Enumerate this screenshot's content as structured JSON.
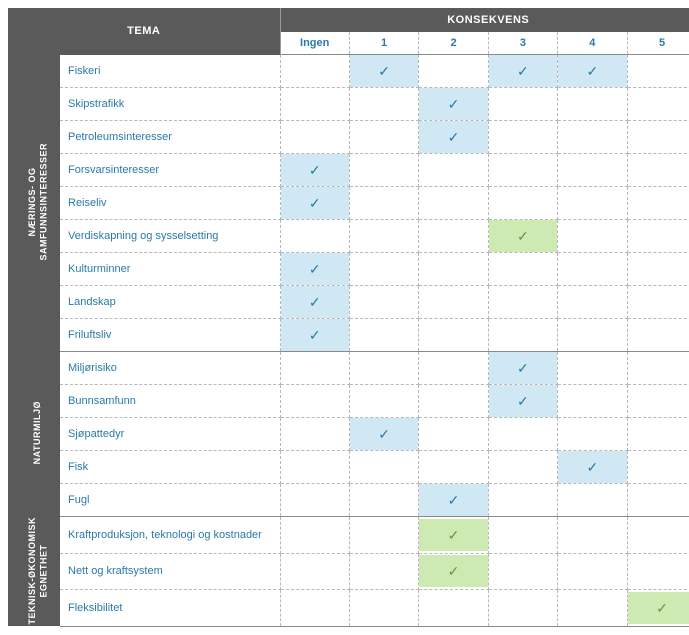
{
  "header": {
    "tema": "TEMA",
    "konsekvens": "KONSEKVENS",
    "cols": [
      "Ingen",
      "1",
      "2",
      "3",
      "4",
      "5"
    ]
  },
  "colors": {
    "dark_bg": "#5a5a5a",
    "header_text": "#ffffff",
    "link_text": "#2a7aa8",
    "blue_fill": "#cfe8f3",
    "blue_check": "#2a7aa8",
    "green_fill": "#cdeab2",
    "green_check": "#5e9a3e",
    "dash": "#b8b8b8",
    "solid": "#8a8a8a"
  },
  "categories": [
    {
      "id": "naerings",
      "label": "NÆRINGS- OG\nSAMFUNNSINTERESSER",
      "rows": [
        {
          "label": "Fiskeri",
          "marks": [
            null,
            "blue",
            null,
            "blue",
            "blue",
            null
          ]
        },
        {
          "label": "Skipstrafikk",
          "marks": [
            null,
            null,
            "blue",
            null,
            null,
            null
          ]
        },
        {
          "label": "Petroleumsinteresser",
          "marks": [
            null,
            null,
            "blue",
            null,
            null,
            null
          ]
        },
        {
          "label": "Forsvarsinteresser",
          "marks": [
            "blue",
            null,
            null,
            null,
            null,
            null
          ]
        },
        {
          "label": "Reiseliv",
          "marks": [
            "blue",
            null,
            null,
            null,
            null,
            null
          ]
        },
        {
          "label": "Verdiskapning og sysselsetting",
          "marks": [
            null,
            null,
            null,
            "green",
            null,
            null
          ]
        },
        {
          "label": "Kulturminner",
          "marks": [
            "blue",
            null,
            null,
            null,
            null,
            null
          ]
        },
        {
          "label": "Landskap",
          "marks": [
            "blue",
            null,
            null,
            null,
            null,
            null
          ]
        },
        {
          "label": "Friluftsliv",
          "marks": [
            "blue",
            null,
            null,
            null,
            null,
            null
          ]
        }
      ]
    },
    {
      "id": "naturmiljo",
      "label": "NATURMILJØ",
      "rows": [
        {
          "label": "Miljørisiko",
          "marks": [
            null,
            null,
            null,
            "blue",
            null,
            null
          ]
        },
        {
          "label": "Bunnsamfunn",
          "marks": [
            null,
            null,
            null,
            "blue",
            null,
            null
          ]
        },
        {
          "label": "Sjøpattedyr",
          "marks": [
            null,
            "blue",
            null,
            null,
            null,
            null
          ]
        },
        {
          "label": "Fisk",
          "marks": [
            null,
            null,
            null,
            null,
            "blue",
            null
          ]
        },
        {
          "label": "Fugl",
          "marks": [
            null,
            null,
            "blue",
            null,
            null,
            null
          ]
        }
      ]
    },
    {
      "id": "teknisk",
      "label": "TEKNISK-ØKONOMISK\nEGNETHET",
      "rows": [
        {
          "label": "Kraftproduksjon, teknologi og kostnader",
          "marks": [
            null,
            null,
            "green",
            null,
            null,
            null
          ]
        },
        {
          "label": "Nett og kraftsystem",
          "marks": [
            null,
            null,
            "green",
            null,
            null,
            null
          ]
        },
        {
          "label": "Fleksibilitet",
          "marks": [
            null,
            null,
            null,
            null,
            null,
            "green"
          ]
        }
      ]
    }
  ]
}
